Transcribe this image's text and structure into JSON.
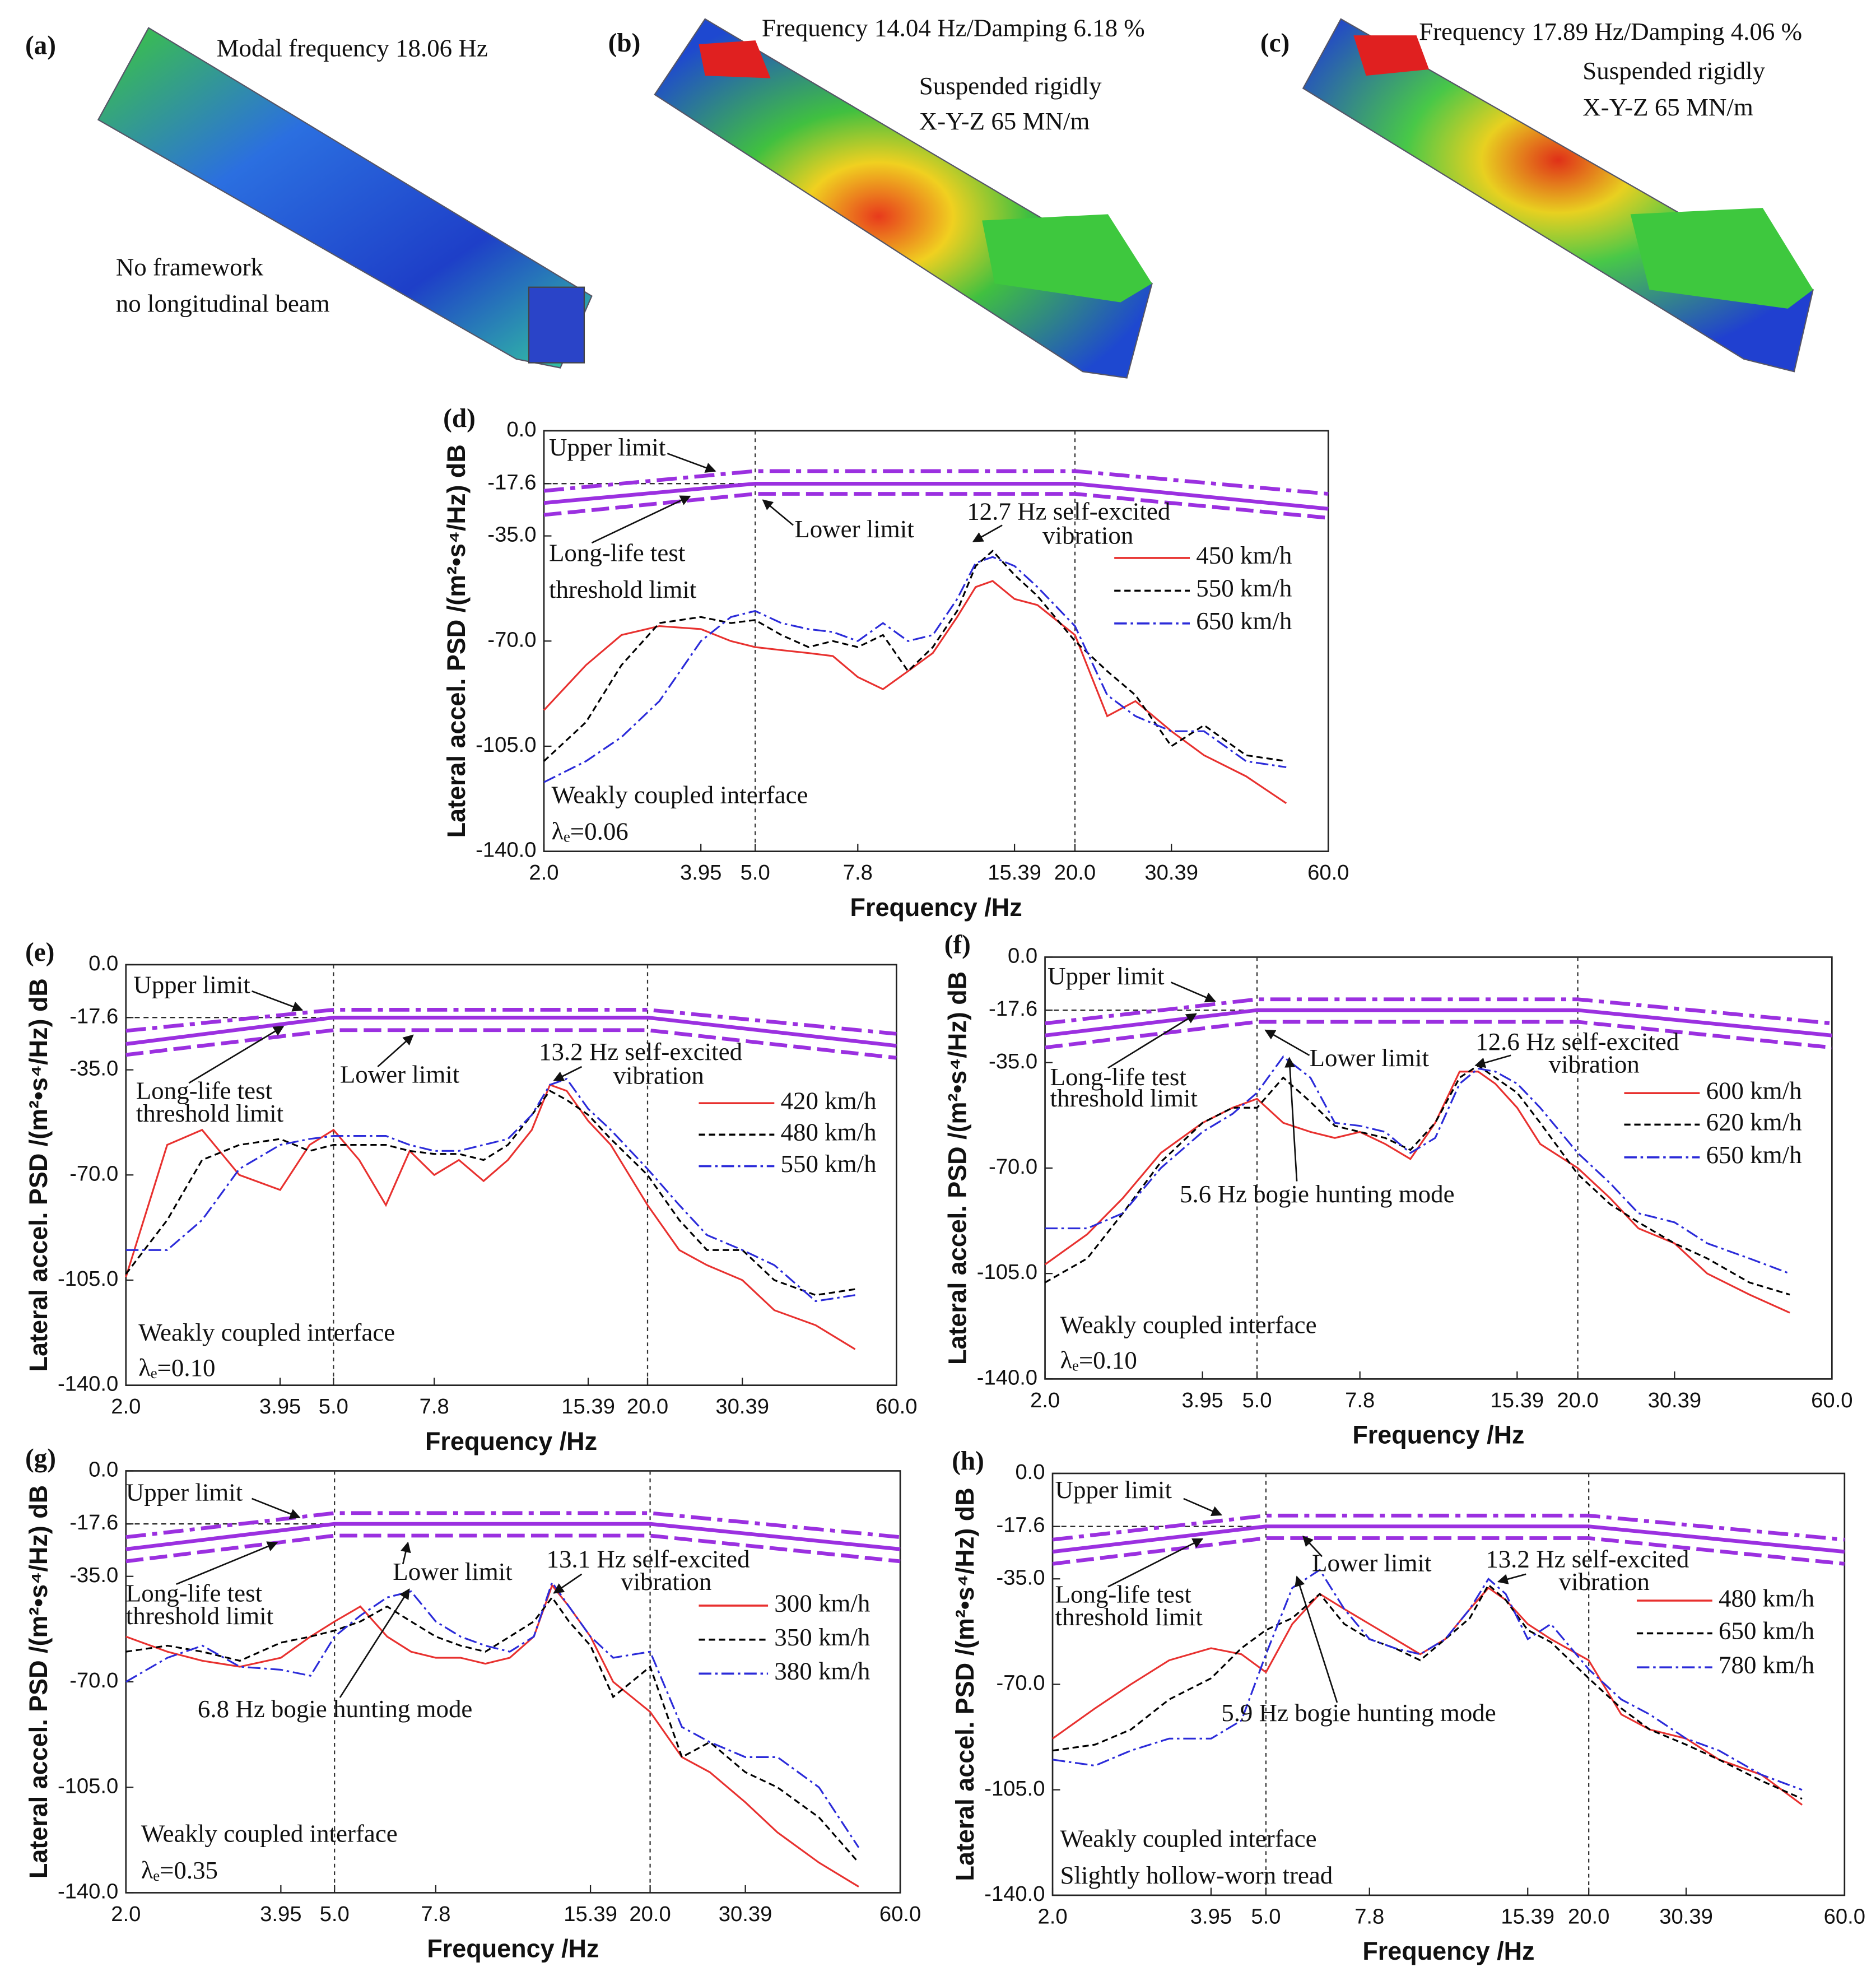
{
  "panels": [
    {
      "label": "(a)",
      "texts": [
        "Modal frequency 18.06 Hz",
        "No framework",
        "no longitudinal beam"
      ]
    },
    {
      "label": "(b)",
      "texts": [
        "Frequency 14.04 Hz/Damping 6.18 %",
        "Suspended rigidly",
        "X-Y-Z 65 MN/m"
      ]
    },
    {
      "label": "(c)",
      "texts": [
        "Frequency 17.89 Hz/Damping 4.06 %",
        "Suspended rigidly",
        "X-Y-Z 65 MN/m"
      ]
    }
  ],
  "chart_data": [
    {
      "type": "line",
      "panel_label": "(d)",
      "x_label": "Frequency /Hz",
      "y_label": "Lateral accel. PSD /(m²•s⁴/Hz) dB",
      "xlog": true,
      "xlim": [
        2,
        60
      ],
      "ylim": [
        -140,
        0
      ],
      "xticks": [
        {
          "value": 2,
          "label": "2.0"
        },
        3.95,
        {
          "value": 5,
          "label": "5.0"
        },
        7.8,
        15.39,
        {
          "value": 20,
          "label": "20.0"
        },
        30.39,
        {
          "value": 60,
          "label": "60.0"
        }
      ],
      "yticks": [
        {
          "value": 0,
          "label": "0.0"
        },
        -17.6,
        {
          "value": -35,
          "label": "-35.0"
        },
        {
          "value": -70,
          "label": "-70.0"
        },
        {
          "value": -105,
          "label": "-105.0"
        },
        {
          "value": -140,
          "label": "-140.0"
        }
      ],
      "limit_lines": {
        "x": [
          2,
          5,
          20,
          60
        ],
        "color": "#9b30e0",
        "upper": [
          -20,
          -13.4,
          -13.4,
          -21
        ],
        "threshold": [
          -24,
          -17.6,
          -17.6,
          -26
        ],
        "lower": [
          -28,
          -21,
          -21,
          -29
        ]
      },
      "x": [
        2,
        2.4,
        2.8,
        3.3,
        3.95,
        4.5,
        5,
        5.6,
        6.3,
        7,
        7.8,
        8.7,
        9.7,
        10.8,
        12,
        13,
        14,
        15.39,
        17,
        20,
        23,
        26,
        30.39,
        35,
        42,
        50
      ],
      "series": [
        {
          "name": "450 km/h",
          "color": "#e8312f",
          "dash": "solid",
          "values": [
            -93,
            -78,
            -68,
            -65,
            -66,
            -70,
            -72,
            -73,
            -74,
            -75,
            -82,
            -86,
            -80,
            -74,
            -62,
            -52,
            -50,
            -56,
            -58,
            -68,
            -95,
            -90,
            -100,
            -108,
            -115,
            -124
          ]
        },
        {
          "name": "550 km/h",
          "color": "#000000",
          "dash": "dashed",
          "values": [
            -110,
            -97,
            -78,
            -64,
            -62,
            -64,
            -63,
            -68,
            -72,
            -70,
            -72,
            -68,
            -80,
            -72,
            -60,
            -45,
            -40,
            -48,
            -55,
            -70,
            -80,
            -88,
            -105,
            -98,
            -108,
            -110
          ]
        },
        {
          "name": "650 km/h",
          "color": "#2b2bd9",
          "dash": "dashdot",
          "values": [
            -117,
            -110,
            -102,
            -90,
            -70,
            -62,
            -60,
            -64,
            -66,
            -67,
            -70,
            -64,
            -70,
            -68,
            -56,
            -44,
            -42,
            -45,
            -52,
            -65,
            -88,
            -95,
            -100,
            -100,
            -110,
            -112
          ]
        }
      ],
      "annotations": [
        "Upper limit",
        "Lower limit",
        "Long-life test",
        "threshold limit",
        "12.7 Hz self-excited",
        "vibration",
        "Weakly coupled interface",
        "λₑ=0.06"
      ]
    },
    {
      "type": "line",
      "panel_label": "(e)",
      "x_label": "Frequency /Hz",
      "y_label": "Lateral accel. PSD /(m²•s⁴/Hz) dB",
      "xlog": true,
      "xlim": [
        2,
        60
      ],
      "ylim": [
        -140,
        0
      ],
      "xticks": [
        {
          "value": 2,
          "label": "2.0"
        },
        3.95,
        {
          "value": 5,
          "label": "5.0"
        },
        7.8,
        15.39,
        {
          "value": 20,
          "label": "20.0"
        },
        30.39,
        {
          "value": 60,
          "label": "60.0"
        }
      ],
      "yticks": [
        {
          "value": 0,
          "label": "0.0"
        },
        -17.6,
        {
          "value": -35,
          "label": "-35.0"
        },
        {
          "value": -70,
          "label": "-70.0"
        },
        {
          "value": -105,
          "label": "-105.0"
        },
        {
          "value": -140,
          "label": "-140.0"
        }
      ],
      "limit_lines": {
        "x": [
          2,
          5,
          20,
          60
        ],
        "color": "#9b30e0",
        "upper": [
          -22,
          -15,
          -15,
          -23
        ],
        "threshold": [
          -26.4,
          -17.6,
          -17.6,
          -27
        ],
        "lower": [
          -30,
          -21.8,
          -21.8,
          -31
        ]
      },
      "x": [
        2,
        2.4,
        2.8,
        3.3,
        3.95,
        4.5,
        5,
        5.6,
        6.3,
        7,
        7.8,
        8.7,
        9.7,
        10.8,
        12,
        13,
        14,
        15.39,
        17,
        20,
        23,
        26,
        30.39,
        35,
        42,
        50
      ],
      "series": [
        {
          "name": "420 km/h",
          "color": "#e8312f",
          "dash": "solid",
          "values": [
            -104,
            -60,
            -55,
            -70,
            -75,
            -60,
            -55,
            -65,
            -80,
            -62,
            -70,
            -65,
            -72,
            -65,
            -55,
            -40,
            -42,
            -52,
            -60,
            -80,
            -95,
            -100,
            -105,
            -115,
            -120,
            -128
          ]
        },
        {
          "name": "480 km/h",
          "color": "#000000",
          "dash": "dashed",
          "values": [
            -103,
            -85,
            -65,
            -60,
            -58,
            -62,
            -60,
            -60,
            -60,
            -62,
            -63,
            -63,
            -65,
            -60,
            -50,
            -42,
            -45,
            -50,
            -58,
            -70,
            -85,
            -95,
            -95,
            -105,
            -110,
            -108
          ]
        },
        {
          "name": "550 km/h",
          "color": "#2b2bd9",
          "dash": "dashdot",
          "values": [
            -95,
            -95,
            -85,
            -68,
            -60,
            -58,
            -57,
            -57,
            -57,
            -60,
            -62,
            -62,
            -60,
            -58,
            -50,
            -40,
            -38,
            -48,
            -55,
            -68,
            -80,
            -90,
            -95,
            -100,
            -112,
            -110
          ]
        }
      ],
      "annotations": [
        "Upper limit",
        "Lower limit",
        "Long-life test",
        "threshold limit",
        "13.2 Hz self-excited",
        "vibration",
        "Weakly coupled interface",
        "λₑ=0.10"
      ]
    },
    {
      "type": "line",
      "panel_label": "(f)",
      "x_label": "Frequency /Hz",
      "y_label": "Lateral accel. PSD /(m²•s⁴/Hz) dB",
      "xlog": true,
      "xlim": [
        2,
        60
      ],
      "ylim": [
        -140,
        0
      ],
      "xticks": [
        {
          "value": 2,
          "label": "2.0"
        },
        3.95,
        {
          "value": 5,
          "label": "5.0"
        },
        7.8,
        15.39,
        {
          "value": 20,
          "label": "20.0"
        },
        30.39,
        {
          "value": 60,
          "label": "60.0"
        }
      ],
      "yticks": [
        {
          "value": 0,
          "label": "0.0"
        },
        -17.6,
        {
          "value": -35,
          "label": "-35.0"
        },
        {
          "value": -70,
          "label": "-70.0"
        },
        {
          "value": -105,
          "label": "-105.0"
        },
        {
          "value": -140,
          "label": "-140.0"
        }
      ],
      "limit_lines": {
        "x": [
          2,
          5,
          20,
          60
        ],
        "color": "#9b30e0",
        "upper": [
          -22,
          -14,
          -14,
          -22
        ],
        "threshold": [
          -26,
          -17.6,
          -17.6,
          -26
        ],
        "lower": [
          -30,
          -21.5,
          -21.5,
          -30
        ]
      },
      "x": [
        2,
        2.4,
        2.8,
        3.3,
        3.95,
        4.5,
        5,
        5.6,
        6.3,
        7,
        7.8,
        8.7,
        9.7,
        10.8,
        12,
        13,
        14,
        15.39,
        17,
        20,
        23,
        26,
        30.39,
        35,
        42,
        50
      ],
      "series": [
        {
          "name": "600 km/h",
          "color": "#e8312f",
          "dash": "solid",
          "values": [
            -102,
            -92,
            -80,
            -65,
            -55,
            -50,
            -47,
            -55,
            -58,
            -60,
            -58,
            -62,
            -67,
            -55,
            -38,
            -38,
            -42,
            -50,
            -62,
            -70,
            -80,
            -90,
            -95,
            -105,
            -112,
            -118
          ]
        },
        {
          "name": "620 km/h",
          "color": "#000000",
          "dash": "dashed",
          "values": [
            -108,
            -100,
            -85,
            -68,
            -55,
            -50,
            -50,
            -40,
            -48,
            -56,
            -58,
            -60,
            -64,
            -55,
            -40,
            -36,
            -40,
            -45,
            -55,
            -72,
            -82,
            -88,
            -95,
            -100,
            -108,
            -112
          ]
        },
        {
          "name": "650 km/h",
          "color": "#2b2bd9",
          "dash": "dashdot",
          "values": [
            -90,
            -90,
            -85,
            -70,
            -58,
            -52,
            -45,
            -33,
            -40,
            -55,
            -56,
            -58,
            -65,
            -60,
            -42,
            -37,
            -38,
            -42,
            -50,
            -65,
            -75,
            -85,
            -88,
            -95,
            -100,
            -105
          ]
        }
      ],
      "annotations": [
        "Upper limit",
        "Lower limit",
        "Long-life test",
        "threshold limit",
        "12.6 Hz self-excited",
        "vibration",
        "Weakly coupled interface",
        "λₑ=0.10",
        "5.6 Hz bogie hunting mode"
      ]
    },
    {
      "type": "line",
      "panel_label": "(g)",
      "x_label": "Frequency /Hz",
      "y_label": "Lateral accel. PSD /(m²•s⁴/Hz) dB",
      "xlog": true,
      "xlim": [
        2,
        60
      ],
      "ylim": [
        -140,
        0
      ],
      "xticks": [
        {
          "value": 2,
          "label": "2.0"
        },
        3.95,
        {
          "value": 5,
          "label": "5.0"
        },
        7.8,
        15.39,
        {
          "value": 20,
          "label": "20.0"
        },
        30.39,
        {
          "value": 60,
          "label": "60.0"
        }
      ],
      "yticks": [
        {
          "value": 0,
          "label": "0.0"
        },
        -17.6,
        {
          "value": -35,
          "label": "-35.0"
        },
        {
          "value": -70,
          "label": "-70.0"
        },
        {
          "value": -105,
          "label": "-105.0"
        },
        {
          "value": -140,
          "label": "-140.0"
        }
      ],
      "limit_lines": {
        "x": [
          2,
          5,
          20,
          60
        ],
        "color": "#9b30e0",
        "upper": [
          -22,
          -14,
          -14,
          -22
        ],
        "threshold": [
          -26,
          -17.6,
          -17.6,
          -26
        ],
        "lower": [
          -30,
          -21.5,
          -21.5,
          -30
        ]
      },
      "x": [
        2,
        2.4,
        2.8,
        3.3,
        3.95,
        4.5,
        5,
        5.6,
        6.3,
        7,
        7.8,
        8.7,
        9.7,
        10.8,
        12,
        13,
        14,
        15.39,
        17,
        20,
        23,
        26,
        30.39,
        35,
        42,
        50
      ],
      "series": [
        {
          "name": "300 km/h",
          "color": "#e8312f",
          "dash": "solid",
          "values": [
            -55,
            -60,
            -63,
            -65,
            -62,
            -55,
            -50,
            -45,
            -55,
            -60,
            -62,
            -62,
            -64,
            -62,
            -55,
            -38,
            -45,
            -55,
            -70,
            -80,
            -95,
            -100,
            -110,
            -120,
            -130,
            -138
          ]
        },
        {
          "name": "350 km/h",
          "color": "#000000",
          "dash": "dashed",
          "values": [
            -60,
            -58,
            -60,
            -63,
            -57,
            -55,
            -53,
            -50,
            -45,
            -50,
            -55,
            -58,
            -60,
            -55,
            -50,
            -42,
            -50,
            -58,
            -75,
            -65,
            -95,
            -90,
            -100,
            -105,
            -115,
            -130
          ]
        },
        {
          "name": "380 km/h",
          "color": "#2b2bd9",
          "dash": "dashdot",
          "values": [
            -70,
            -62,
            -58,
            -65,
            -66,
            -68,
            -55,
            -48,
            -42,
            -40,
            -50,
            -55,
            -58,
            -60,
            -55,
            -37,
            -45,
            -55,
            -62,
            -60,
            -85,
            -90,
            -95,
            -95,
            -105,
            -125
          ]
        }
      ],
      "annotations": [
        "Upper limit",
        "Lower limit",
        "Long-life test",
        "threshold limit",
        "13.1 Hz self-excited",
        "vibration",
        "Weakly coupled interface",
        "λₑ=0.35",
        "6.8 Hz bogie hunting mode"
      ]
    },
    {
      "type": "line",
      "panel_label": "(h)",
      "x_label": "Frequency /Hz",
      "y_label": "Lateral accel. PSD /(m²•s⁴/Hz) dB",
      "xlog": true,
      "xlim": [
        2,
        60
      ],
      "ylim": [
        -140,
        0
      ],
      "xticks": [
        {
          "value": 2,
          "label": "2.0"
        },
        3.95,
        {
          "value": 5,
          "label": "5.0"
        },
        7.8,
        15.39,
        {
          "value": 20,
          "label": "20.0"
        },
        30.39,
        {
          "value": 60,
          "label": "60.0"
        }
      ],
      "yticks": [
        {
          "value": 0,
          "label": "0.0"
        },
        -17.6,
        {
          "value": -35,
          "label": "-35.0"
        },
        {
          "value": -70,
          "label": "-70.0"
        },
        {
          "value": -105,
          "label": "-105.0"
        },
        {
          "value": -140,
          "label": "-140.0"
        }
      ],
      "limit_lines": {
        "x": [
          2,
          5,
          20,
          60
        ],
        "color": "#9b30e0",
        "upper": [
          -22,
          -14,
          -14,
          -22
        ],
        "threshold": [
          -26,
          -17.6,
          -17.6,
          -26
        ],
        "lower": [
          -30,
          -21.5,
          -21.5,
          -30
        ]
      },
      "x": [
        2,
        2.4,
        2.8,
        3.3,
        3.95,
        4.5,
        5,
        5.6,
        6.3,
        7,
        7.8,
        8.7,
        9.7,
        10.8,
        12,
        13,
        14,
        15.39,
        17,
        20,
        23,
        26,
        30.39,
        35,
        42,
        50
      ],
      "series": [
        {
          "name": "480 km/h",
          "color": "#e8312f",
          "dash": "solid",
          "values": [
            -88,
            -78,
            -70,
            -62,
            -58,
            -60,
            -66,
            -50,
            -40,
            -45,
            -50,
            -55,
            -60,
            -55,
            -45,
            -38,
            -42,
            -50,
            -55,
            -62,
            -80,
            -85,
            -88,
            -95,
            -100,
            -110
          ]
        },
        {
          "name": "650 km/h",
          "color": "#000000",
          "dash": "dashed",
          "values": [
            -92,
            -90,
            -85,
            -75,
            -68,
            -58,
            -52,
            -48,
            -40,
            -50,
            -55,
            -58,
            -62,
            -55,
            -48,
            -37,
            -42,
            -52,
            -56,
            -68,
            -78,
            -85,
            -90,
            -95,
            -102,
            -108
          ]
        },
        {
          "name": "780 km/h",
          "color": "#2b2bd9",
          "dash": "dashdot",
          "values": [
            -95,
            -97,
            -92,
            -88,
            -88,
            -82,
            -60,
            -38,
            -32,
            -45,
            -55,
            -58,
            -60,
            -55,
            -45,
            -35,
            -40,
            -55,
            -50,
            -65,
            -75,
            -80,
            -88,
            -92,
            -100,
            -105
          ]
        }
      ],
      "annotations": [
        "Upper limit",
        "Lower limit",
        "Long-life test",
        "threshold limit",
        "13.2 Hz self-excited",
        "vibration",
        "Weakly coupled interface",
        "Slightly hollow-worn tread",
        "5.9 Hz bogie hunting mode"
      ]
    }
  ]
}
